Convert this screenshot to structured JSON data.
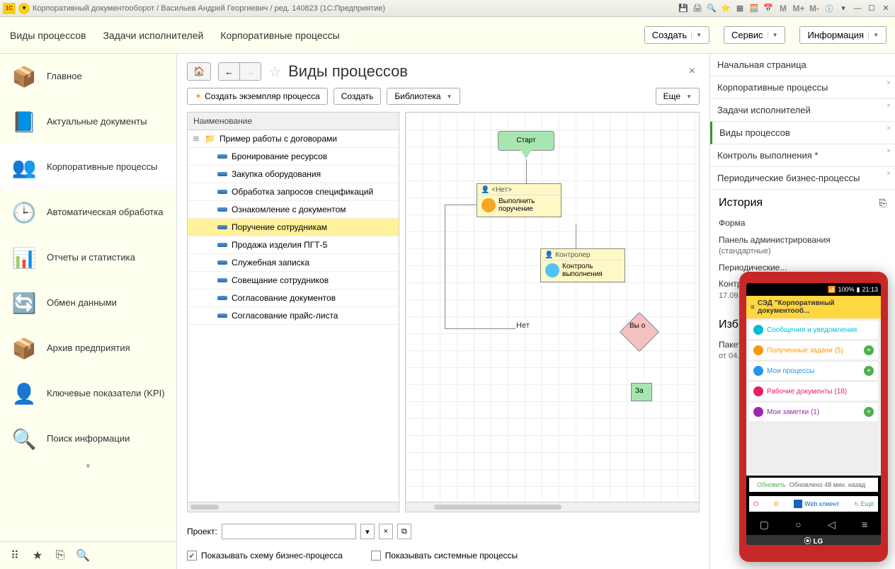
{
  "titlebar": {
    "title": "Корпоративный документооборот / Васильев Андрей Георгиевич / ред. 140823  (1С:Предприятие)",
    "memory": [
      "M",
      "M+",
      "M-"
    ]
  },
  "menubar": {
    "items": [
      "Виды процессов",
      "Задачи исполнителей",
      "Корпоративные процессы"
    ],
    "buttons": {
      "create": "Создать",
      "service": "Сервис",
      "info": "Информация"
    }
  },
  "sidebar": {
    "items": [
      {
        "label": "Главное",
        "icon": "📦",
        "color": "#d00"
      },
      {
        "label": "Актуальные документы",
        "icon": "📘",
        "color": "#1565c0"
      },
      {
        "label": "Корпоративные процессы",
        "icon": "👥",
        "color": "#f5a623",
        "active": true
      },
      {
        "label": "Автоматическая обработка",
        "icon": "🕒",
        "color": "#f5a623"
      },
      {
        "label": "Отчеты и статистика",
        "icon": "📊",
        "color": "#e91e63"
      },
      {
        "label": "Обмен данными",
        "icon": "🔄",
        "color": "#4caf50"
      },
      {
        "label": "Архив предприятия",
        "icon": "📦",
        "color": "#f5a623"
      },
      {
        "label": "Ключевые показатели (KPI)",
        "icon": "👤",
        "color": "#607d8b"
      },
      {
        "label": "Поиск информации",
        "icon": "🔍",
        "color": "#607d8b"
      }
    ]
  },
  "center": {
    "title": "Виды процессов",
    "toolbar": {
      "create_instance": "Создать экземпляр процесса",
      "create": "Создать",
      "library": "Библиотека",
      "more": "Еще"
    },
    "tree": {
      "header": "Наименование",
      "rows": [
        {
          "label": "Пример работы с договорами",
          "folder": true,
          "expand": "⊞"
        },
        {
          "label": "Бронирование ресурсов"
        },
        {
          "label": "Закупка оборудования"
        },
        {
          "label": "Обработка запросов спецификаций"
        },
        {
          "label": "Ознакомление с документом"
        },
        {
          "label": "Поручение сотрудникам",
          "selected": true
        },
        {
          "label": "Продажа изделия ПГТ-5"
        },
        {
          "label": "Служебная записка"
        },
        {
          "label": "Совещание сотрудников"
        },
        {
          "label": "Согласование документов"
        },
        {
          "label": "Согласование прайс-листа"
        }
      ]
    },
    "diagram": {
      "start": "Старт",
      "task1_hdr": "👤 <Нет>",
      "task1_body": "Выполнить поручение",
      "task2_hdr": "👤 Контролер",
      "task2_body": "Контроль выполнения",
      "no": "Нет",
      "decision": "Вы о",
      "za": "За"
    },
    "bottom": {
      "project_label": "Проект:",
      "show_schema": "Показывать схему бизнес-процесса",
      "show_system": "Показывать системные процессы"
    }
  },
  "right_tabs": [
    {
      "label": "Начальная страница"
    },
    {
      "label": "Корпоративные процессы",
      "close": true
    },
    {
      "label": "Задачи исполнителей",
      "close": true
    },
    {
      "label": "Виды процессов",
      "active": true,
      "close": true
    },
    {
      "label": "Контроль выполнения *",
      "close": true
    },
    {
      "label": "Периодические бизнес-процессы",
      "close": true
    }
  ],
  "history": {
    "title": "История",
    "items": [
      {
        "main": "Форма"
      },
      {
        "main": "Панель администрирования",
        "sub": "(стандартные)"
      },
      {
        "main": "Периодические..."
      },
      {
        "main": "Контроль вы...",
        "sub": "17.09.2014 10..."
      }
    ]
  },
  "favorites": {
    "title": "Избранное",
    "items": [
      {
        "main": "Пакет приме...",
        "sub": "от 04.01.2014"
      }
    ]
  },
  "phone": {
    "time": "21:13",
    "battery": "100%",
    "app_title": "СЭД \"Корпоративный документооб...",
    "rows": [
      {
        "label": "Сообщения и уведомления",
        "color": "#00bcd4"
      },
      {
        "label": "Полученные задачи (5)",
        "color": "#ff9800",
        "plus": true
      },
      {
        "label": "Мои процессы",
        "color": "#2196f3",
        "plus": true
      },
      {
        "label": "Рабочие документы (18)",
        "color": "#e91e63"
      },
      {
        "label": "Мои заметки (1)",
        "color": "#9c27b0",
        "plus": true
      }
    ],
    "refresh": "Обновить",
    "refreshed": "Обновлено 48 мин. назад",
    "web": "Web клиент",
    "more": "Ещё",
    "brand": "LG"
  }
}
